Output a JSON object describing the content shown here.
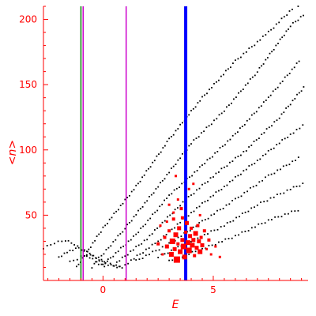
{
  "chart_data": {
    "type": "scatter",
    "xlabel": "E",
    "ylabel": "<n>",
    "xlim": [
      -2.7,
      9.3
    ],
    "ylim": [
      0,
      210
    ],
    "x_ticks": [
      0,
      5
    ],
    "x_tick_labels": [
      "0",
      "5"
    ],
    "y_ticks": [
      50,
      100,
      150,
      200
    ],
    "y_tick_labels": [
      "50",
      "100",
      "150",
      "200"
    ],
    "grid": false,
    "axes_color": "#ff0000",
    "vertical_lines": [
      {
        "x": -1.0,
        "color": "#008000",
        "width": 1.5
      },
      {
        "x": -0.9,
        "color": "#cc00cc",
        "width": 1.5
      },
      {
        "x": 1.05,
        "color": "#cc00cc",
        "width": 1.5
      },
      {
        "x": 3.75,
        "color": "#0000ff",
        "width": 4
      }
    ],
    "series": [
      {
        "color": "#000000",
        "marker": "dot",
        "curves": [
          {
            "x": [
              -1.2,
              0.0,
              1.5,
              3.0,
              4.5,
              6.0,
              7.5,
              8.7,
              9.0
            ],
            "y": [
              10,
              40,
              72,
              108,
              140,
              168,
              190,
              210,
              210
            ]
          },
          {
            "x": [
              -0.5,
              1.0,
              2.5,
              4.0,
              5.5,
              7.0,
              8.5,
              9.2
            ],
            "y": [
              10,
              40,
              72,
              105,
              130,
              160,
              195,
              205
            ]
          },
          {
            "x": [
              0.0,
              1.5,
              3.0,
              4.5,
              6.0,
              7.5,
              9.0
            ],
            "y": [
              12,
              35,
              65,
              88,
              112,
              140,
              170
            ]
          },
          {
            "x": [
              0.5,
              2.0,
              3.5,
              5.0,
              6.5,
              8.0,
              9.2
            ],
            "y": [
              12,
              32,
              58,
              80,
              100,
              125,
              150
            ]
          },
          {
            "x": [
              1.0,
              2.5,
              4.0,
              5.5,
              7.0,
              8.5,
              9.2
            ],
            "y": [
              12,
              30,
              52,
              72,
              92,
              112,
              120
            ]
          },
          {
            "x": [
              1.5,
              3.0,
              4.5,
              6.0,
              7.5,
              9.0
            ],
            "y": [
              15,
              28,
              45,
              62,
              80,
              95
            ]
          },
          {
            "x": [
              2.5,
              4.0,
              5.5,
              7.0,
              8.5,
              9.2
            ],
            "y": [
              18,
              30,
              42,
              58,
              70,
              75
            ]
          },
          {
            "x": [
              3.0,
              4.5,
              6.0,
              7.5,
              9.0
            ],
            "y": [
              15,
              24,
              34,
              46,
              55
            ]
          },
          {
            "x": [
              -2.7,
              -2.2,
              -1.7,
              -1.3,
              -1.0,
              -0.6,
              -0.2,
              0.2
            ],
            "y": [
              25,
              29,
              31,
              28,
              24,
              18,
              13,
              10
            ]
          },
          {
            "x": [
              -2.0,
              -1.5,
              -1.1,
              -0.7,
              -0.3,
              0.1,
              0.5,
              0.9
            ],
            "y": [
              18,
              23,
              25,
              22,
              17,
              13,
              11,
              10
            ]
          },
          {
            "x": [
              -1.5,
              -1.0,
              -0.6,
              -0.2,
              0.2,
              0.6,
              1.0
            ],
            "y": [
              14,
              18,
              20,
              17,
              14,
              11,
              10
            ]
          }
        ]
      },
      {
        "color": "#ff0000",
        "marker": "square",
        "points": [
          [
            2.6,
            42
          ],
          [
            2.8,
            33
          ],
          [
            2.9,
            26
          ],
          [
            3.0,
            38
          ],
          [
            3.1,
            20
          ],
          [
            3.15,
            30
          ],
          [
            3.2,
            47
          ],
          [
            3.25,
            24
          ],
          [
            3.3,
            35
          ],
          [
            3.35,
            16
          ],
          [
            3.4,
            28
          ],
          [
            3.45,
            40
          ],
          [
            3.5,
            22
          ],
          [
            3.55,
            55
          ],
          [
            3.6,
            31
          ],
          [
            3.65,
            26
          ],
          [
            3.7,
            18
          ],
          [
            3.75,
            37
          ],
          [
            3.8,
            44
          ],
          [
            3.85,
            29
          ],
          [
            3.9,
            23
          ],
          [
            3.95,
            34
          ],
          [
            4.0,
            40
          ],
          [
            4.05,
            27
          ],
          [
            4.1,
            31
          ],
          [
            4.15,
            19
          ],
          [
            4.2,
            36
          ],
          [
            4.25,
            25
          ],
          [
            4.3,
            42
          ],
          [
            4.35,
            30
          ],
          [
            4.4,
            22
          ],
          [
            4.45,
            33
          ],
          [
            4.5,
            27
          ],
          [
            4.6,
            38
          ],
          [
            4.7,
            24
          ],
          [
            4.8,
            31
          ],
          [
            4.9,
            20
          ],
          [
            5.1,
            26
          ],
          [
            5.3,
            18
          ],
          [
            2.5,
            28
          ],
          [
            2.7,
            20
          ],
          [
            3.0,
            58
          ],
          [
            3.4,
            62
          ],
          [
            3.9,
            70
          ],
          [
            3.3,
            80
          ],
          [
            4.1,
            74
          ],
          [
            3.6,
            48
          ],
          [
            3.2,
            52
          ],
          [
            2.9,
            45
          ],
          [
            4.4,
            50
          ]
        ],
        "sizes": [
          3,
          4,
          5,
          4,
          6,
          7,
          4,
          5,
          6,
          8,
          4,
          5,
          6,
          4,
          5,
          7,
          6,
          4,
          5,
          6,
          7,
          5,
          4,
          6,
          5,
          4,
          6,
          5,
          4,
          5,
          6,
          4,
          5,
          4,
          3,
          4,
          3,
          3,
          3,
          4,
          3,
          3,
          3,
          3,
          3,
          3,
          4,
          3,
          3,
          3
        ]
      }
    ]
  }
}
